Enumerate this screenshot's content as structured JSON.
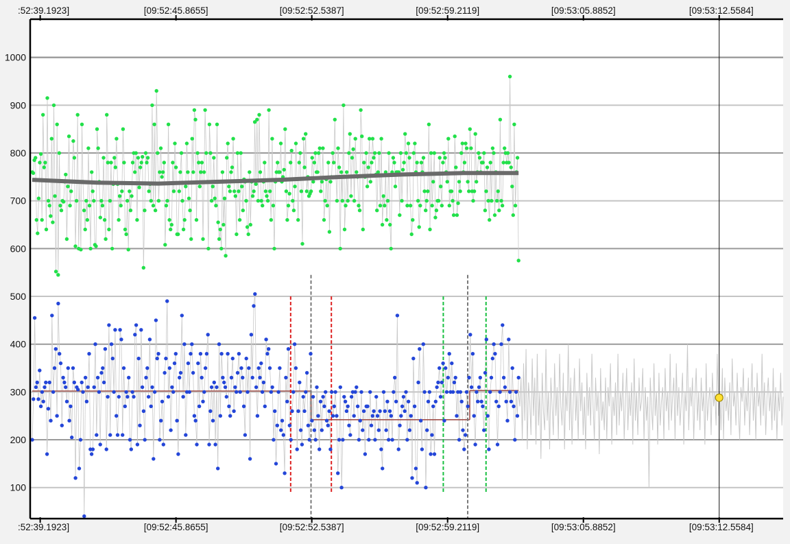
{
  "chart_data": {
    "type": "scatter",
    "title": "",
    "xlabel": "",
    "ylabel": "",
    "x_tick_labels": [
      ":52:39.1923]",
      "[09:52:45.8655]",
      "[09:52:52.5387]",
      "[09:52:59.2119]",
      "[09:53:05.8852]",
      "[09:53:12.5584]"
    ],
    "x_tick_times": [
      "09:52:39.1923",
      "09:52:45.8655",
      "09:52:52.5387",
      "09:52:59.2119",
      "09:53:05.8852",
      "09:53:12.5584"
    ],
    "y_ticks": [
      100,
      200,
      300,
      400,
      500,
      600,
      700,
      800,
      900,
      1000
    ],
    "ylim": [
      35,
      1080
    ],
    "xlim": [
      "09:52:38.7",
      "09:53:15.7"
    ],
    "grid": true,
    "cursor_time": "09:53:12.5584",
    "cursor_marker_value": 288,
    "series": [
      {
        "role": "upper-points",
        "color": "#22e04a",
        "x_start": "09:52:38.8",
        "x_end": "09:53:02.7",
        "values": [
          760,
          758,
          785,
          790,
          660,
          632,
          705,
          780,
          798,
          660,
          880,
          770,
          780,
          640,
          915,
          700,
          690,
          668,
          830,
          655,
          900,
          710,
          552,
          860,
          545,
          800,
          690,
          680,
          700,
          698,
          740,
          755,
          620,
          730,
          835,
          690,
          720,
          740,
          825,
          790,
          605,
          700,
          880,
          600,
          740,
          598,
          860,
          740,
          680,
          640,
          700,
          660,
          810,
          690,
          600,
          760,
          720,
          700,
          608,
          605,
          850,
          810,
          740,
          665,
          700,
          690,
          790,
          660,
          620,
          880,
          780,
          640,
          700,
          780,
          600,
          735,
          790,
          770,
          830,
          735,
          660,
          710,
          690,
          720,
          850,
          780,
          640,
          630,
          700,
          598,
          720,
          680,
          710,
          780,
          800,
          760,
          800,
          660,
          790,
          728,
          770,
          780,
          792,
          560,
          680,
          800,
          780,
          790,
          720,
          735,
          700,
          900,
          690,
          860,
          680,
          930,
          800,
          700,
          760,
          810,
          750,
          760,
          780,
          608,
          690,
          700,
          860,
          660,
          640,
          650,
          780,
          720,
          820,
          770,
          630,
          630,
          720,
          760,
          800,
          700,
          640,
          660,
          730,
          820,
          760,
          705,
          680,
          620,
          830,
          760,
          890,
          870,
          660,
          800,
          780,
          730,
          760,
          780,
          620,
          760,
          890,
          800,
          740,
          600,
          860,
          800,
          700,
          730,
          790,
          705,
          690,
          860,
          655,
          620,
          640,
          600,
          760,
          650,
          705,
          585,
          790,
          820,
          730,
          720,
          760,
          770,
          830,
          720,
          710,
          630,
          800,
          720,
          660,
          800,
          730,
          680,
          745,
          740,
          700,
          645,
          630,
          760,
          650,
          740,
          710,
          720,
          865,
          735,
          870,
          700,
          880,
          760,
          700,
          690,
          740,
          780,
          720,
          710,
          700,
          890,
          720,
          660,
          830,
          690,
          600,
          740,
          760,
          780,
          760,
          760,
          820,
          740,
          750,
          765,
          850,
          720,
          660,
          690,
          715,
          780,
          805,
          700,
          680,
          730,
          820,
          745,
          660,
          780,
          800,
          720,
          610,
          830,
          770,
          840,
          720,
          750,
          710,
          715,
          720,
          790,
          740,
          780,
          800,
          760,
          760,
          800,
          810,
          720,
          740,
          810,
          660,
          700,
          745,
          690,
          780,
          635,
          740,
          750,
          800,
          780,
          870,
          750,
          700,
          810,
          770,
          600,
          760,
          700,
          900,
          640,
          690,
          760,
          700,
          800,
          840,
          710,
          790,
          808,
          700,
          830,
          760,
          750,
          690,
          680,
          890,
          835,
          640,
          780,
          750,
          800,
          730,
          770,
          830,
          740,
          780,
          830,
          790,
          800,
          755,
          680,
          760,
          800,
          690,
          830,
          650,
          710,
          690,
          760,
          660,
          700,
          800,
          650,
          600,
          760,
          790,
          780,
          730,
          760,
          760,
          760,
          670,
          800,
          700,
          765,
          780,
          840,
          800,
          690,
          820,
          790,
          690,
          630,
          660,
          800,
          820,
          760,
          780,
          700,
          645,
          690,
          780,
          760,
          790,
          720,
          680,
          700,
          720,
          860,
          640,
          800,
          690,
          740,
          800,
          665,
          680,
          700,
          700,
          790,
          730,
          690,
          780,
          800,
          790,
          760,
          740,
          830,
          690,
          720,
          720,
          700,
          670,
          835,
          770,
          670,
          695,
          740,
          720,
          800,
          820,
          760,
          780,
          820,
          810,
          740,
          720,
          850,
          810,
          720,
          700,
          720,
          840,
          740,
          760,
          800,
          790,
          760,
          780,
          780,
          800,
          680,
          720,
          770,
          700,
          660,
          780,
          700,
          810,
          800,
          670,
          760,
          700,
          720,
          680,
          870,
          700,
          690,
          780,
          810,
          800,
          780,
          800,
          780,
          960,
          770,
          730,
          670,
          860,
          690,
          760,
          790,
          575
        ]
      },
      {
        "role": "upper-trend",
        "color": "#6a6a6a",
        "x": [
          "09:52:38.8",
          "09:52:42.0",
          "09:52:45.0",
          "09:52:48.0",
          "09:52:51.0",
          "09:52:54.0",
          "09:52:57.0",
          "09:53:00.0",
          "09:53:02.7"
        ],
        "values": [
          744,
          738,
          736,
          740,
          744,
          750,
          755,
          758,
          758
        ]
      },
      {
        "role": "lower-points",
        "color": "#2446d8",
        "x_start": "09:52:38.8",
        "x_end": "09:53:02.7",
        "values": [
          200,
          285,
          455,
          310,
          320,
          285,
          345,
          270,
          300,
          280,
          310,
          320,
          170,
          265,
          320,
          240,
          460,
          300,
          350,
          390,
          250,
          485,
          380,
          360,
          230,
          330,
          320,
          310,
          280,
          350,
          240,
          270,
          205,
          350,
          320,
          120,
          310,
          305,
          140,
          200,
          320,
          300,
          40,
          330,
          280,
          310,
          380,
          180,
          170,
          180,
          310,
          400,
          210,
          330,
          300,
          190,
          340,
          350,
          320,
          390,
          180,
          290,
          440,
          210,
          400,
          370,
          300,
          430,
          250,
          210,
          290,
          430,
          410,
          210,
          350,
          270,
          300,
          290,
          330,
          200,
          180,
          300,
          290,
          420,
          440,
          190,
          370,
          230,
          430,
          310,
          260,
          200,
          330,
          350,
          290,
          410,
          270,
          310,
          160,
          300,
          450,
          370,
          380,
          200,
          240,
          280,
          190,
          340,
          370,
          490,
          290,
          350,
          220,
          310,
          300,
          360,
          380,
          240,
          170,
          330,
          340,
          460,
          290,
          400,
          210,
          300,
          360,
          300,
          380,
          400,
          340,
          250,
          240,
          190,
          360,
          270,
          380,
          330,
          280,
          300,
          350,
          380,
          420,
          190,
          260,
          310,
          240,
          320,
          190,
          310,
          140,
          400,
          250,
          380,
          330,
          320,
          310,
          290,
          380,
          270,
          250,
          330,
          370,
          260,
          310,
          300,
          340,
          380,
          300,
          350,
          330,
          270,
          210,
          370,
          300,
          350,
          160,
          420,
          330,
          480,
          505,
          310,
          250,
          350,
          330,
          360,
          300,
          320,
          270,
          410,
          380,
          390,
          350,
          300,
          310,
          200,
          260,
          150,
          230,
          300,
          350,
          220,
          240,
          210,
          130,
          330,
          280,
          390,
          230,
          200,
          260,
          300,
          400,
          350,
          180,
          260,
          320,
          220,
          190,
          290,
          260,
          300,
          340,
          230,
          200,
          380,
          240,
          290,
          220,
          200,
          310,
          250,
          180,
          280,
          220,
          290,
          270,
          300,
          240,
          230,
          260,
          180,
          300,
          250,
          270,
          300,
          250,
          130,
          200,
          310,
          100,
          200,
          290,
          280,
          260,
          270,
          230,
          210,
          290,
          300,
          250,
          300,
          310,
          270,
          200,
          240,
          300,
          220,
          260,
          170,
          270,
          270,
          200,
          300,
          230,
          250,
          260,
          200,
          290,
          250,
          220,
          260,
          180,
          140,
          300,
          260,
          220,
          280,
          200,
          260,
          250,
          200,
          300,
          330,
          280,
          460,
          180,
          230,
          250,
          270,
          290,
          260,
          300,
          200,
          280,
          220,
          250,
          120,
          370,
          270,
          140,
          110,
          320,
          390,
          240,
          180,
          400,
          300,
          100,
          220,
          280,
          300,
          170,
          210,
          270,
          170,
          280,
          310,
          320,
          350,
          290,
          320,
          360,
          240,
          350,
          300,
          330,
          380,
          300,
          360,
          300,
          320,
          330,
          250,
          300,
          200,
          300,
          280,
          220,
          180,
          210,
          300,
          270,
          330,
          420,
          310,
          380,
          250,
          190,
          300,
          280,
          310,
          330,
          280,
          270,
          220,
          340,
          410,
          250,
          180,
          300,
          330,
          370,
          400,
          380,
          280,
          190,
          270,
          300,
          400,
          440,
          330,
          310,
          280,
          240,
          410,
          300,
          280,
          350,
          270,
          200,
          300,
          250,
          330
        ]
      },
      {
        "role": "lower-future-trace",
        "color": "#c8c8c8",
        "x_start": "09:53:02.7",
        "x_end": "09:53:15.7",
        "values": [
          300,
          270,
          330,
          200,
          360,
          240,
          390,
          180,
          320,
          280,
          210,
          370,
          250,
          330,
          190,
          380,
          230,
          300,
          160,
          340,
          260,
          220,
          390,
          240,
          300,
          180,
          330,
          270,
          210,
          360,
          250,
          310,
          200,
          380,
          270,
          230,
          340,
          180,
          300,
          260,
          400,
          220,
          330,
          190,
          280,
          350,
          240,
          300,
          200,
          370,
          260,
          320,
          210,
          290,
          180,
          340,
          250,
          310,
          230,
          380,
          270,
          200,
          330,
          260,
          300,
          170,
          350,
          240,
          280,
          220,
          330,
          200,
          310,
          270,
          360,
          190,
          290,
          250,
          320,
          210,
          380,
          230,
          300,
          260,
          340,
          200,
          280,
          350,
          220,
          300,
          250,
          320,
          190,
          370,
          240,
          300,
          210,
          330,
          260,
          280,
          350,
          200,
          310,
          240,
          290,
          100,
          330,
          270,
          220,
          360,
          250,
          300,
          190,
          340,
          230,
          280,
          310,
          200,
          350,
          260,
          300,
          220,
          380,
          240,
          290,
          330,
          200,
          360,
          250,
          310,
          230,
          280,
          340,
          190,
          300,
          260,
          400,
          220,
          310,
          270,
          330,
          200,
          290,
          350,
          240,
          300,
          220,
          330,
          260,
          300,
          190,
          360,
          240,
          280,
          310,
          210,
          340,
          270,
          300,
          230,
          380,
          250,
          300,
          220,
          350,
          200,
          330,
          260,
          290,
          240,
          320,
          210,
          370,
          270,
          300,
          230,
          340,
          260,
          200,
          310,
          280,
          350,
          230,
          300,
          260,
          330,
          210,
          290,
          360,
          240,
          310,
          200,
          340,
          270,
          300,
          230,
          380,
          250,
          320,
          210,
          290,
          330,
          260,
          300,
          220,
          350,
          240,
          310,
          200,
          300,
          260,
          340,
          230,
          290
        ]
      },
      {
        "role": "segment-means",
        "color": "#a0504a",
        "segments": [
          {
            "x0": "09:52:38.8",
            "x1": "09:52:52.5",
            "value": 302
          },
          {
            "x0": "09:52:52.5",
            "x1": "09:53:00.3",
            "value": 242
          },
          {
            "x0": "09:53:00.3",
            "x1": "09:53:02.7",
            "value": 303
          }
        ]
      }
    ],
    "markers": [
      {
        "color": "#dd2020",
        "x": "09:52:51.5",
        "ymin": 90,
        "ymax": 500
      },
      {
        "color": "#dd2020",
        "x": "09:52:53.5",
        "ymin": 90,
        "ymax": 500
      },
      {
        "color": "#777777",
        "x": "09:52:52.5",
        "ymin": 35,
        "ymax": 545
      },
      {
        "color": "#777777",
        "x": "09:53:00.2",
        "ymin": 35,
        "ymax": 545
      },
      {
        "color": "#18c040",
        "x": "09:52:59.0",
        "ymin": 90,
        "ymax": 500
      },
      {
        "color": "#18c040",
        "x": "09:53:01.1",
        "ymin": 90,
        "ymax": 500
      }
    ]
  }
}
